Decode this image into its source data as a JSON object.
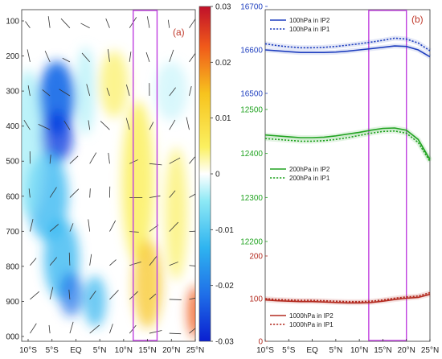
{
  "chart_data": [
    {
      "type": "heatmap",
      "panel_label": "(a)",
      "x_ticks": [
        "10°S",
        "5°S",
        "EQ",
        "5°N",
        "10°N",
        "15°N",
        "20°N",
        "25°N"
      ],
      "x_values": [
        -10,
        -5,
        0,
        5,
        10,
        15,
        20,
        25
      ],
      "y_ticks": [
        "100",
        "200",
        "300",
        "400",
        "500",
        "600",
        "700",
        "800",
        "900",
        "000"
      ],
      "y_values": [
        100,
        200,
        300,
        400,
        500,
        600,
        700,
        800,
        900,
        1000
      ],
      "ylim": [
        100,
        1000
      ],
      "colorbar": {
        "ticks": [
          "0.03",
          "0.02",
          "0.01",
          "0",
          "-0.01",
          "-0.02",
          "-0.03"
        ],
        "values": [
          0.03,
          0.02,
          0.01,
          0,
          -0.01,
          -0.02,
          -0.03
        ],
        "range": [
          -0.03,
          0.03
        ]
      },
      "highlight_box": {
        "x_range": [
          12,
          17
        ],
        "y_range": [
          100,
          1000
        ],
        "color": "#c040e0"
      }
    },
    {
      "type": "line",
      "panel_label": "(b)",
      "x": [
        -10,
        -7.5,
        -5,
        -2.5,
        0,
        2.5,
        5,
        7.5,
        10,
        12.5,
        15,
        17.5,
        20,
        22.5,
        25
      ],
      "x_ticks": [
        "10°S",
        "5°S",
        "EQ",
        "5°N",
        "10°N",
        "15°N",
        "20°N",
        "25°N"
      ],
      "x_tick_values": [
        -10,
        -5,
        0,
        5,
        10,
        15,
        20,
        25
      ],
      "highlight_box": {
        "x_range": [
          12,
          20
        ],
        "color": "#c040e0"
      },
      "groups": [
        {
          "level": "100hPa",
          "color": "#1f3fbf",
          "ylim": [
            16500,
            16700
          ],
          "y_ticks": [
            "16700",
            "16600",
            "16500"
          ],
          "y_tick_values": [
            16700,
            16600,
            16500
          ],
          "series": [
            {
              "name": "100hPa in IP2",
              "style": "solid",
              "values": [
                16600,
                16598,
                16596,
                16594,
                16594,
                16594,
                16595,
                16597,
                16600,
                16603,
                16606,
                16609,
                16608,
                16600,
                16584
              ]
            },
            {
              "name": "100hPa in IP1",
              "style": "dotted",
              "values": [
                16614,
                16610,
                16607,
                16605,
                16605,
                16606,
                16608,
                16611,
                16614,
                16618,
                16622,
                16627,
                16625,
                16616,
                16598
              ]
            }
          ]
        },
        {
          "level": "200hPa",
          "color": "#21a321",
          "ylim": [
            12200,
            12500
          ],
          "y_ticks": [
            "12500",
            "12400",
            "12300",
            "12200"
          ],
          "y_tick_values": [
            12500,
            12400,
            12300,
            12200
          ],
          "series": [
            {
              "name": "200hPa in IP2",
              "style": "solid",
              "values": [
                12442,
                12440,
                12438,
                12436,
                12436,
                12437,
                12440,
                12444,
                12448,
                12453,
                12457,
                12458,
                12453,
                12432,
                12386
              ]
            },
            {
              "name": "200hPa in IP1",
              "style": "dotted",
              "values": [
                12434,
                12432,
                12430,
                12428,
                12428,
                12429,
                12432,
                12436,
                12441,
                12446,
                12450,
                12451,
                12446,
                12425,
                12382
              ]
            }
          ]
        },
        {
          "level": "1000hPa",
          "color": "#b32b20",
          "ylim": [
            0,
            200
          ],
          "y_ticks": [
            "200",
            "100",
            "0"
          ],
          "y_tick_values": [
            200,
            100,
            0
          ],
          "series": [
            {
              "name": "1000hPa in IP2",
              "style": "solid",
              "values": [
                97,
                95,
                94,
                93,
                93,
                92,
                91,
                90,
                90,
                91,
                94,
                98,
                101,
                103,
                110
              ]
            },
            {
              "name": "1000hPa in IP1",
              "style": "dotted",
              "values": [
                100,
                98,
                97,
                96,
                96,
                95,
                94,
                93,
                93,
                94,
                97,
                101,
                104,
                106,
                114
              ]
            }
          ]
        }
      ]
    }
  ]
}
